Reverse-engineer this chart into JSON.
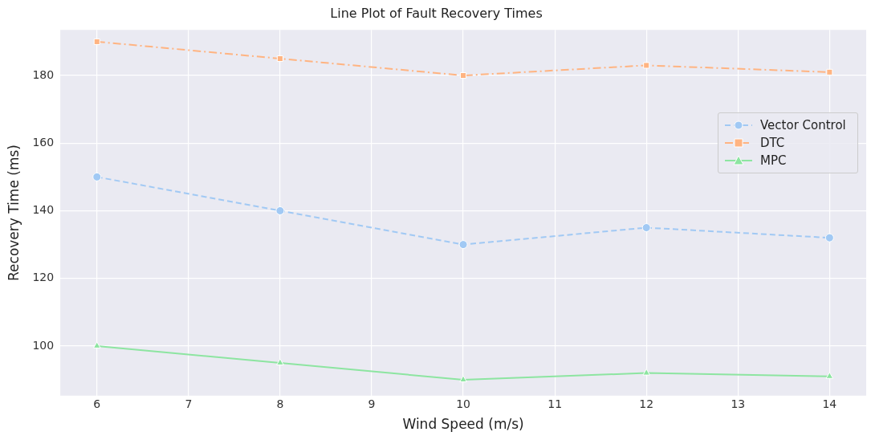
{
  "chart_data": {
    "type": "line",
    "title": "Line Plot of Fault Recovery Times",
    "xlabel": "Wind Speed (m/s)",
    "ylabel": "Recovery Time (ms)",
    "x": [
      6,
      8,
      10,
      12,
      14
    ],
    "series": [
      {
        "name": "Vector Control",
        "color": "#a1c9f4",
        "values": [
          150,
          140,
          130,
          135,
          132
        ],
        "marker": "circle",
        "line_style": "dashed"
      },
      {
        "name": "DTC",
        "color": "#ffb482",
        "values": [
          190,
          185,
          180,
          183,
          181
        ],
        "marker": "square",
        "line_style": "dashdot"
      },
      {
        "name": "MPC",
        "color": "#8de5a1",
        "values": [
          100,
          95,
          90,
          92,
          91
        ],
        "marker": "triangle",
        "line_style": "solid"
      }
    ],
    "xlim": [
      5.6,
      14.4
    ],
    "xticks": [
      6,
      7,
      8,
      9,
      10,
      11,
      12,
      13,
      14
    ],
    "ylim": [
      85.3,
      193.5
    ],
    "yticks": [
      100,
      120,
      140,
      160,
      180
    ],
    "grid": true,
    "legend": "center right"
  }
}
